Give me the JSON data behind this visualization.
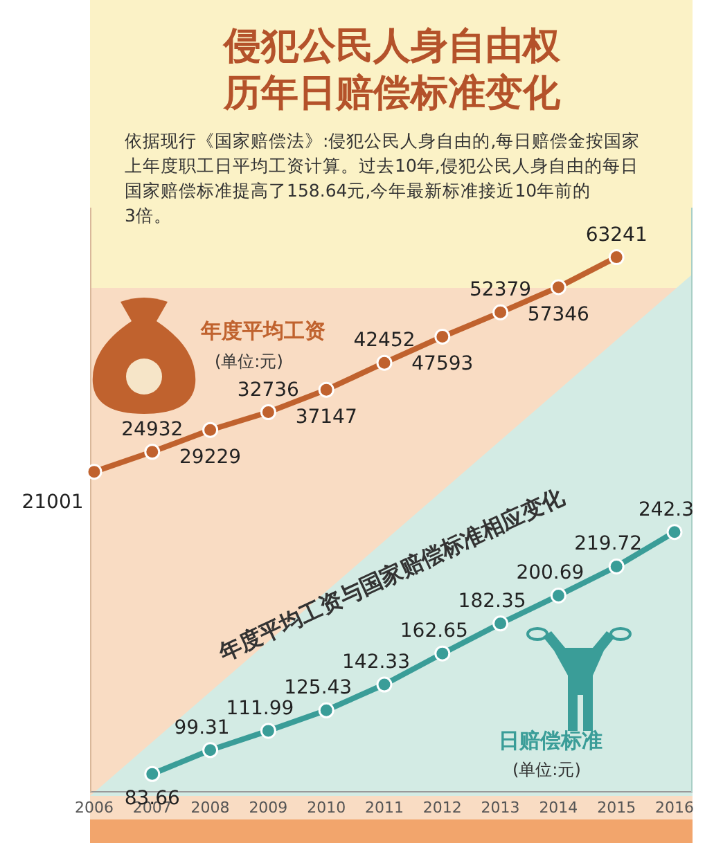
{
  "chart_data": {
    "type": "line",
    "title": "侵犯公民人身自由权历年日赔偿标准变化",
    "ylim": [
      -42000,
      73000
    ],
    "y2lim": [
      72,
      455
    ],
    "subtitle": "依据现行《国家赔偿法》:侵犯公民人身自由的,每日赔偿金按国家上年度职工日平均工资计算。过去10年,侵犯公民人身自由的每日国家赔偿标准提高了158.64元,今年最新标准接近10年前的3倍。",
    "categories": [
      "2006",
      "2007",
      "2008",
      "2009",
      "2010",
      "2011",
      "2012",
      "2013",
      "2014",
      "2015",
      "2016"
    ],
    "series": [
      {
        "name": "年度平均工资",
        "color": "#c0622e",
        "values": [
          21001,
          24932,
          29229,
          32736,
          37147,
          42452,
          47593,
          52379,
          57346,
          63241,
          null
        ]
      },
      {
        "name": "日赔偿标准",
        "color": "#3a9d98",
        "axis": "y2",
        "values": [
          null,
          83.66,
          99.31,
          111.99,
          125.43,
          142.33,
          162.65,
          182.35,
          200.69,
          219.72,
          242.3
        ]
      }
    ],
    "annotations": [
      "(单位:元)",
      "年度平均工资与国家赔偿标准相应变化",
      "(单位:元)"
    ],
    "marker": "circle",
    "data_labels": true,
    "tick_labels": "x"
  }
}
